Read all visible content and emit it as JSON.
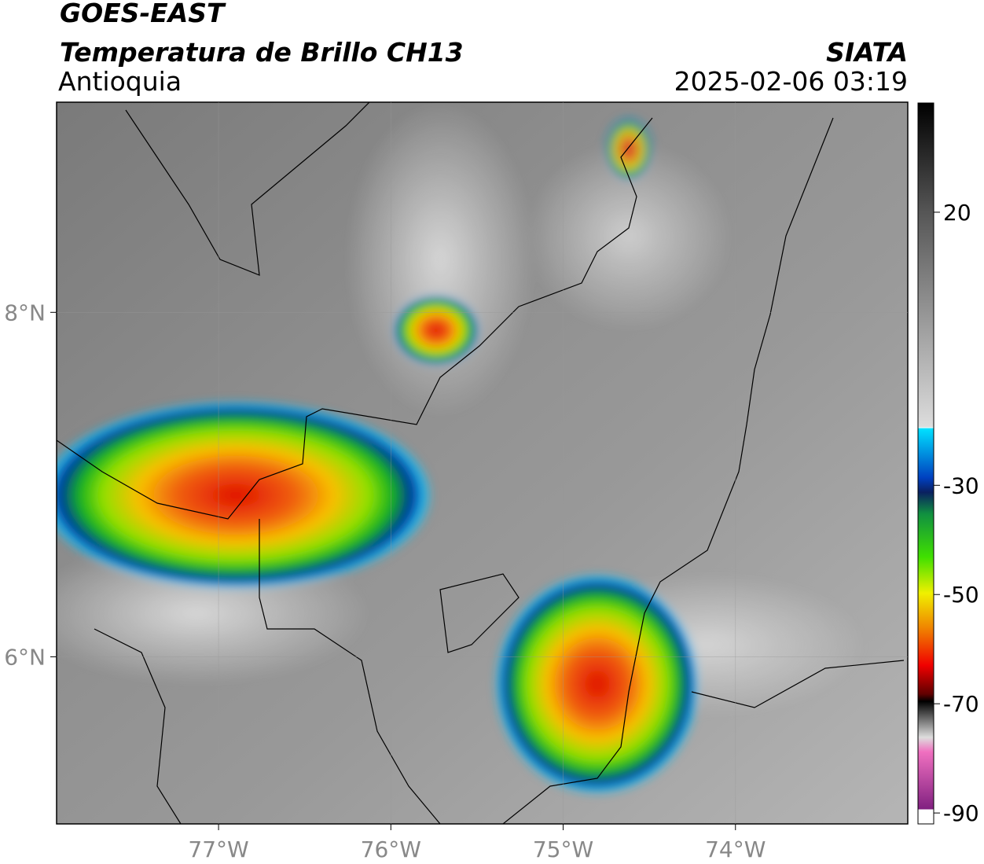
{
  "header": {
    "title": "GOES-EAST",
    "subtitle": "Temperatura de Brillo CH13",
    "region": "Antioquia",
    "source": "SIATA",
    "datetime": "2025-02-06 03:19"
  },
  "map": {
    "xlim": [
      -77.94,
      -73.0
    ],
    "ylim": [
      5.03,
      9.22
    ],
    "xticks": [
      {
        "value": -77,
        "label": "77°W"
      },
      {
        "value": -76,
        "label": "76°W"
      },
      {
        "value": -75,
        "label": "75°W"
      },
      {
        "value": -74,
        "label": "74°W"
      }
    ],
    "yticks": [
      {
        "value": 8,
        "label": "8°N"
      },
      {
        "value": 6,
        "label": "6°N"
      }
    ]
  },
  "colorbar": {
    "lim": [
      -92,
      40
    ],
    "ticks": [
      20,
      -30,
      -50,
      -70,
      -90
    ]
  }
}
